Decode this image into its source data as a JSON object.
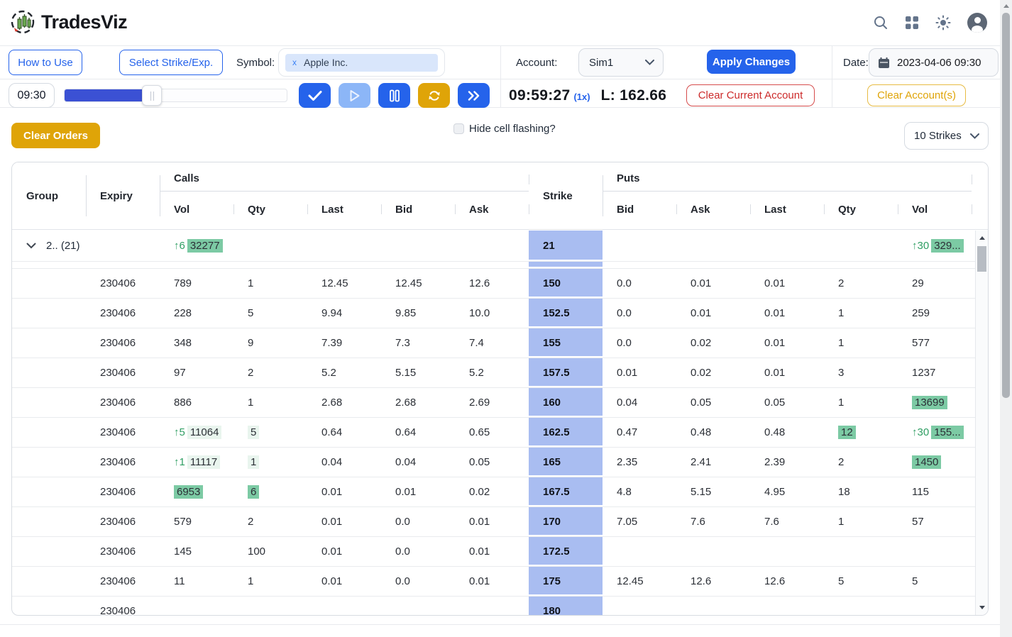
{
  "brand": {
    "name": "TradesViz"
  },
  "toolbar": {
    "how_to_use": "How to Use",
    "select_strike": "Select Strike/Exp.",
    "symbol_label": "Symbol:",
    "symbol_chip_x": "x",
    "symbol_chip": "Apple Inc.",
    "account_label": "Account:",
    "account_value": "Sim1",
    "apply_changes": "Apply Changes",
    "date_label": "Date:",
    "date_value": "2023-04-06 09:30",
    "time_start": "09:30",
    "clock": "09:59:27",
    "speed": "(1x)",
    "last_price": "L: 162.66",
    "clear_current_account": "Clear Current Account",
    "clear_accounts": "Clear Account(s)"
  },
  "controls": {
    "clear_orders": "Clear Orders",
    "hide_flashing_label": "Hide cell flashing?",
    "strikes_select": "10 Strikes"
  },
  "table": {
    "headers": {
      "group": "Group",
      "expiry": "Expiry",
      "calls": "Calls",
      "puts": "Puts",
      "strike": "Strike",
      "calls_sub": [
        "Vol",
        "Qty",
        "Last",
        "Bid",
        "Ask"
      ],
      "puts_sub": [
        "Bid",
        "Ask",
        "Last",
        "Qty",
        "Vol"
      ]
    },
    "group_row": {
      "label": "2.. (21)",
      "c_vol": {
        "a": "↑6",
        "t": "32277",
        "h": "s"
      },
      "strike": "21",
      "p_vol": {
        "a": "↑30",
        "t": "329...",
        "h": "s"
      }
    },
    "rows": [
      {
        "expiry": "230406",
        "c_vol": "789",
        "c_qty": "1",
        "c_last": "12.45",
        "c_bid": "12.45",
        "c_ask": "12.6",
        "strike": "150",
        "p_bid": "0.0",
        "p_ask": "0.01",
        "p_last": "0.01",
        "p_qty": "2",
        "p_vol": "29"
      },
      {
        "expiry": "230406",
        "c_vol": "228",
        "c_qty": "5",
        "c_last": "9.94",
        "c_bid": "9.85",
        "c_ask": "10.0",
        "strike": "152.5",
        "p_bid": "0.0",
        "p_ask": "0.01",
        "p_last": "0.01",
        "p_qty": "1",
        "p_vol": "259"
      },
      {
        "expiry": "230406",
        "c_vol": "348",
        "c_qty": "9",
        "c_last": "7.39",
        "c_bid": "7.3",
        "c_ask": "7.4",
        "strike": "155",
        "p_bid": "0.0",
        "p_ask": "0.02",
        "p_last": "0.01",
        "p_qty": "1",
        "p_vol": "577"
      },
      {
        "expiry": "230406",
        "c_vol": "97",
        "c_qty": "2",
        "c_last": "5.2",
        "c_bid": "5.15",
        "c_ask": "5.2",
        "strike": "157.5",
        "p_bid": "0.01",
        "p_ask": "0.02",
        "p_last": "0.01",
        "p_qty": "3",
        "p_vol": "1237"
      },
      {
        "expiry": "230406",
        "c_vol": "886",
        "c_qty": "1",
        "c_last": "2.68",
        "c_bid": "2.68",
        "c_ask": "2.69",
        "strike": "160",
        "p_bid": "0.04",
        "p_ask": "0.05",
        "p_last": "0.05",
        "p_qty": "1",
        "p_vol": {
          "t": "13699",
          "h": "s"
        }
      },
      {
        "expiry": "230406",
        "c_vol": {
          "a": "↑5",
          "t": "11064",
          "h": "l"
        },
        "c_qty": {
          "t": "5",
          "h": "l"
        },
        "c_last": "0.64",
        "c_bid": "0.64",
        "c_ask": "0.65",
        "strike": "162.5",
        "p_bid": "0.47",
        "p_ask": "0.48",
        "p_last": "0.48",
        "p_qty": {
          "t": "12",
          "h": "s"
        },
        "p_vol": {
          "a": "↑30",
          "t": "155...",
          "h": "s"
        }
      },
      {
        "expiry": "230406",
        "c_vol": {
          "a": "↑1",
          "t": "11117",
          "h": "l"
        },
        "c_qty": {
          "t": "1",
          "h": "l"
        },
        "c_last": "0.04",
        "c_bid": "0.04",
        "c_ask": "0.05",
        "strike": "165",
        "p_bid": "2.35",
        "p_ask": "2.41",
        "p_last": "2.39",
        "p_qty": "2",
        "p_vol": {
          "t": "1450",
          "h": "s"
        }
      },
      {
        "expiry": "230406",
        "c_vol": {
          "t": "6953",
          "h": "s"
        },
        "c_qty": {
          "t": "6",
          "h": "s"
        },
        "c_last": "0.01",
        "c_bid": "0.01",
        "c_ask": "0.02",
        "strike": "167.5",
        "p_bid": "4.8",
        "p_ask": "5.15",
        "p_last": "4.95",
        "p_qty": "18",
        "p_vol": "115"
      },
      {
        "expiry": "230406",
        "c_vol": "579",
        "c_qty": "2",
        "c_last": "0.01",
        "c_bid": "0.0",
        "c_ask": "0.01",
        "strike": "170",
        "p_bid": "7.05",
        "p_ask": "7.6",
        "p_last": "7.6",
        "p_qty": "1",
        "p_vol": "57"
      },
      {
        "expiry": "230406",
        "c_vol": "145",
        "c_qty": "100",
        "c_last": "0.01",
        "c_bid": "0.0",
        "c_ask": "0.01",
        "strike": "172.5",
        "p_bid": "",
        "p_ask": "",
        "p_last": "",
        "p_qty": "",
        "p_vol": ""
      },
      {
        "expiry": "230406",
        "c_vol": "11",
        "c_qty": "1",
        "c_last": "0.01",
        "c_bid": "0.0",
        "c_ask": "0.01",
        "strike": "175",
        "p_bid": "12.45",
        "p_ask": "12.6",
        "p_last": "12.6",
        "p_qty": "5",
        "p_vol": "5"
      },
      {
        "expiry": "230406",
        "c_vol": "",
        "c_qty": "",
        "c_last": "",
        "c_bid": "",
        "c_ask": "",
        "strike": "180",
        "p_bid": "",
        "p_ask": "",
        "p_last": "",
        "p_qty": "",
        "p_vol": ""
      }
    ]
  },
  "colors": {
    "accent_blue": "#2563eb",
    "amber": "#dfa408",
    "red": "#cc2b2b",
    "strike_bg": "#a9bdf1",
    "highlight_strong": "#7ccaa4",
    "highlight_light": "#e9f5ee",
    "green_text": "#2f9e63"
  }
}
